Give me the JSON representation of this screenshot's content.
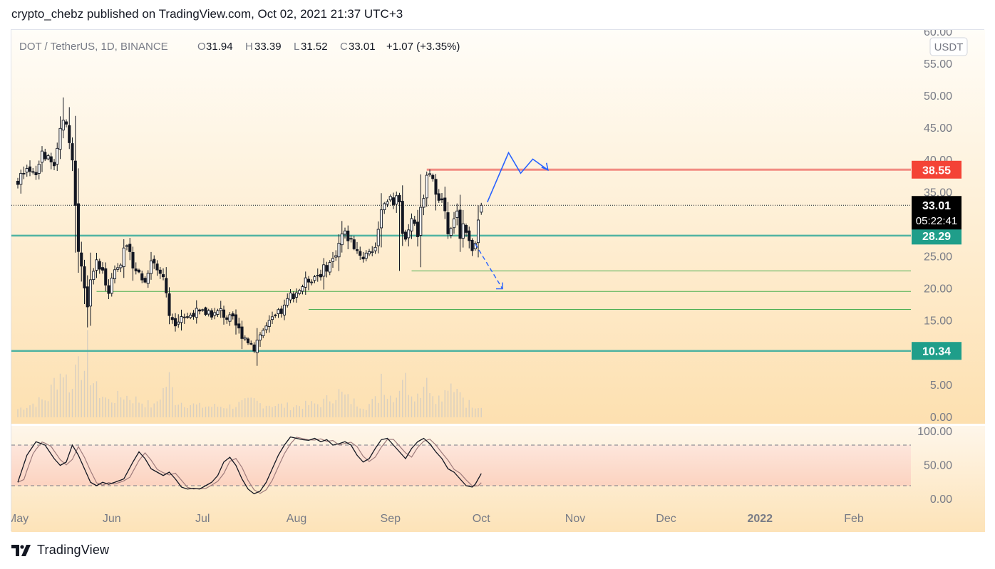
{
  "header": {
    "publish_line": "crypto_chebz published on TradingView.com, Oct 02, 2021 21:37 UTC+3"
  },
  "footer": {
    "brand": "TradingView"
  },
  "legend": {
    "symbol": "DOT / TetherUS, 1D, BINANCE",
    "o_label": "O",
    "o_value": "31.94",
    "h_label": "H",
    "h_value": "33.39",
    "l_label": "L",
    "l_value": "31.52",
    "c_label": "C",
    "c_value": "33.01",
    "change": "+1.07 (+3.35%)"
  },
  "currency_badge": "USDT",
  "colors": {
    "candle": "#131722",
    "resistance": "#f44336",
    "support": "#26a69a",
    "support_thin": "#4caf50",
    "projection": "#2962ff",
    "stoch_k": "#131722",
    "stoch_d": "#9e7b7b",
    "bg_top": "#fffdf8",
    "bg_bottom": "#fde0b0",
    "stoch_band": "#fcd3c6"
  },
  "chart_data": {
    "type": "candlestick",
    "ylim": [
      0,
      60
    ],
    "price_ticks": [
      "0.00",
      "5.00",
      "10.00",
      "15.00",
      "20.00",
      "25.00",
      "30.00",
      "35.00",
      "40.00",
      "45.00",
      "50.00",
      "55.00",
      "60.00"
    ],
    "x_labels": [
      {
        "label": "May",
        "day": 0
      },
      {
        "label": "Jun",
        "day": 31
      },
      {
        "label": "Jul",
        "day": 61
      },
      {
        "label": "Aug",
        "day": 92
      },
      {
        "label": "Sep",
        "day": 123
      },
      {
        "label": "Oct",
        "day": 153
      },
      {
        "label": "Nov",
        "day": 184
      },
      {
        "label": "Dec",
        "day": 214
      },
      {
        "label": "2022",
        "day": 245
      },
      {
        "label": "Feb",
        "day": 276
      }
    ],
    "close_anchors": [
      [
        0,
        37.0
      ],
      [
        3,
        38.0
      ],
      [
        6,
        37.5
      ],
      [
        8,
        41.5
      ],
      [
        10,
        40.0
      ],
      [
        12,
        39.0
      ],
      [
        14,
        45.0
      ],
      [
        15,
        47.0
      ],
      [
        16,
        45.0
      ],
      [
        17,
        43.5
      ],
      [
        18,
        40.0
      ],
      [
        20,
        26.0
      ],
      [
        21,
        24.0
      ],
      [
        23,
        17.0
      ],
      [
        24,
        22.0
      ],
      [
        26,
        24.0
      ],
      [
        28,
        22.5
      ],
      [
        30,
        20.0
      ],
      [
        32,
        23.0
      ],
      [
        34,
        24.5
      ],
      [
        35,
        27.0
      ],
      [
        37,
        25.0
      ],
      [
        39,
        23.0
      ],
      [
        42,
        21.0
      ],
      [
        44,
        25.0
      ],
      [
        46,
        23.0
      ],
      [
        48,
        22.0
      ],
      [
        50,
        16.0
      ],
      [
        52,
        15.0
      ],
      [
        54,
        16.0
      ],
      [
        56,
        15.5
      ],
      [
        58,
        16.5
      ],
      [
        60,
        16.0
      ],
      [
        63,
        16.5
      ],
      [
        65,
        16.0
      ],
      [
        67,
        16.5
      ],
      [
        69,
        15.5
      ],
      [
        71,
        15.0
      ],
      [
        73,
        13.5
      ],
      [
        75,
        12.5
      ],
      [
        77,
        11.5
      ],
      [
        78,
        11.0
      ],
      [
        80,
        13.0
      ],
      [
        82,
        14.0
      ],
      [
        84,
        15.0
      ],
      [
        86,
        16.0
      ],
      [
        88,
        17.0
      ],
      [
        90,
        19.0
      ],
      [
        92,
        19.5
      ],
      [
        94,
        20.5
      ],
      [
        96,
        21.5
      ],
      [
        98,
        22.0
      ],
      [
        100,
        22.5
      ],
      [
        102,
        23.5
      ],
      [
        104,
        24.5
      ],
      [
        106,
        27.0
      ],
      [
        107,
        28.5
      ],
      [
        108,
        28.5
      ],
      [
        110,
        27.5
      ],
      [
        112,
        26.0
      ],
      [
        114,
        25.0
      ],
      [
        116,
        26.0
      ],
      [
        118,
        26.5
      ],
      [
        119,
        28.5
      ],
      [
        120,
        33.0
      ],
      [
        122,
        34.0
      ],
      [
        124,
        33.5
      ],
      [
        125,
        35.0
      ],
      [
        126,
        33.0
      ],
      [
        127,
        29.0
      ],
      [
        128,
        27.0
      ],
      [
        129,
        28.5
      ],
      [
        130,
        31.0
      ],
      [
        131,
        30.0
      ],
      [
        132,
        28.5
      ],
      [
        133,
        32.0
      ],
      [
        134,
        34.5
      ],
      [
        135,
        37.0
      ],
      [
        136,
        37.5
      ],
      [
        137,
        36.5
      ],
      [
        138,
        35.5
      ],
      [
        139,
        34.5
      ],
      [
        140,
        33.5
      ],
      [
        141,
        32.0
      ],
      [
        142,
        28.0
      ],
      [
        143,
        29.0
      ],
      [
        144,
        30.5
      ],
      [
        145,
        32.5
      ],
      [
        146,
        28.5
      ],
      [
        147,
        30.0
      ],
      [
        148,
        29.0
      ],
      [
        149,
        27.0
      ],
      [
        150,
        26.5
      ],
      [
        151,
        27.5
      ],
      [
        152,
        31.5
      ],
      [
        153,
        33.01
      ]
    ],
    "last_bar": {
      "open": 31.94,
      "high": 33.39,
      "low": 31.52,
      "close": 33.01
    },
    "high_marker": {
      "day": 15,
      "value": 49.8
    },
    "levels": [
      {
        "name": "resistance",
        "value": 38.55,
        "from_day": 135,
        "label": "38.55",
        "style": "thick-red"
      },
      {
        "name": "support-upper",
        "value": 28.29,
        "from_day": -2,
        "label": "28.29",
        "style": "thick-teal"
      },
      {
        "name": "support-thin-1",
        "value": 22.8,
        "from_day": 130,
        "style": "thin-green"
      },
      {
        "name": "support-thin-2",
        "value": 19.6,
        "from_day": 26,
        "style": "thin-green"
      },
      {
        "name": "support-thin-3",
        "value": 16.8,
        "from_day": 96,
        "style": "thin-green"
      },
      {
        "name": "support-lower",
        "value": 10.34,
        "from_day": -2,
        "label": "10.34",
        "style": "thick-teal"
      }
    ],
    "current_price": {
      "label": "33.01",
      "countdown": "05:22:41",
      "value": 33.01
    },
    "projection_up": [
      [
        155,
        33.5
      ],
      [
        162,
        41.2
      ],
      [
        166,
        38.0
      ],
      [
        170,
        40.2
      ],
      [
        175,
        38.5
      ]
    ],
    "projection_down": [
      [
        151,
        27.0
      ],
      [
        160,
        20.0
      ]
    ],
    "stochastic": {
      "ylim": [
        0,
        100
      ],
      "ticks": [
        "0.00",
        "50.00",
        "100.00"
      ],
      "upper_band": 80,
      "lower_band": 20,
      "k_anchors": [
        [
          0,
          25
        ],
        [
          3,
          65
        ],
        [
          6,
          85
        ],
        [
          9,
          80
        ],
        [
          12,
          60
        ],
        [
          14,
          50
        ],
        [
          16,
          55
        ],
        [
          18,
          80
        ],
        [
          20,
          65
        ],
        [
          22,
          45
        ],
        [
          24,
          25
        ],
        [
          26,
          20
        ],
        [
          28,
          25
        ],
        [
          30,
          22
        ],
        [
          32,
          25
        ],
        [
          35,
          30
        ],
        [
          38,
          55
        ],
        [
          40,
          70
        ],
        [
          42,
          60
        ],
        [
          44,
          45
        ],
        [
          46,
          40
        ],
        [
          48,
          35
        ],
        [
          50,
          40
        ],
        [
          52,
          30
        ],
        [
          54,
          18
        ],
        [
          56,
          15
        ],
        [
          58,
          16
        ],
        [
          60,
          15
        ],
        [
          62,
          20
        ],
        [
          64,
          25
        ],
        [
          66,
          35
        ],
        [
          68,
          55
        ],
        [
          70,
          62
        ],
        [
          72,
          50
        ],
        [
          74,
          30
        ],
        [
          76,
          15
        ],
        [
          78,
          8
        ],
        [
          80,
          12
        ],
        [
          82,
          25
        ],
        [
          84,
          45
        ],
        [
          86,
          65
        ],
        [
          88,
          80
        ],
        [
          90,
          92
        ],
        [
          92,
          90
        ],
        [
          94,
          88
        ],
        [
          96,
          87
        ],
        [
          98,
          90
        ],
        [
          100,
          85
        ],
        [
          102,
          88
        ],
        [
          104,
          80
        ],
        [
          106,
          82
        ],
        [
          108,
          85
        ],
        [
          110,
          80
        ],
        [
          112,
          65
        ],
        [
          114,
          55
        ],
        [
          116,
          60
        ],
        [
          118,
          75
        ],
        [
          120,
          88
        ],
        [
          122,
          90
        ],
        [
          124,
          80
        ],
        [
          126,
          70
        ],
        [
          128,
          60
        ],
        [
          130,
          75
        ],
        [
          132,
          85
        ],
        [
          134,
          90
        ],
        [
          136,
          82
        ],
        [
          138,
          70
        ],
        [
          140,
          60
        ],
        [
          142,
          45
        ],
        [
          144,
          40
        ],
        [
          146,
          30
        ],
        [
          148,
          20
        ],
        [
          150,
          18
        ],
        [
          151,
          22
        ],
        [
          152,
          30
        ],
        [
          153,
          38
        ]
      ]
    },
    "volume_anchors": [
      [
        0,
        1.5
      ],
      [
        5,
        2.5
      ],
      [
        10,
        3.5
      ],
      [
        12,
        6.5
      ],
      [
        14,
        8.0
      ],
      [
        15,
        9.0
      ],
      [
        16,
        7.0
      ],
      [
        18,
        5.0
      ],
      [
        20,
        14.5
      ],
      [
        21,
        10.0
      ],
      [
        22,
        6.5
      ],
      [
        23,
        12.0
      ],
      [
        24,
        8.0
      ],
      [
        26,
        5.0
      ],
      [
        30,
        3.0
      ],
      [
        35,
        4.0
      ],
      [
        40,
        3.0
      ],
      [
        45,
        2.0
      ],
      [
        50,
        7.0
      ],
      [
        52,
        3.0
      ],
      [
        60,
        2.0
      ],
      [
        70,
        2.0
      ],
      [
        78,
        3.0
      ],
      [
        80,
        2.5
      ],
      [
        90,
        2.0
      ],
      [
        100,
        2.5
      ],
      [
        106,
        4.5
      ],
      [
        110,
        3.0
      ],
      [
        115,
        2.0
      ],
      [
        119,
        3.5
      ],
      [
        120,
        8.0
      ],
      [
        122,
        4.0
      ],
      [
        125,
        4.0
      ],
      [
        127,
        8.0
      ],
      [
        129,
        5.5
      ],
      [
        132,
        4.0
      ],
      [
        134,
        6.0
      ],
      [
        135,
        10.0
      ],
      [
        136,
        4.5
      ],
      [
        140,
        3.0
      ],
      [
        142,
        5.5
      ],
      [
        144,
        4.0
      ],
      [
        146,
        5.5
      ],
      [
        148,
        2.5
      ],
      [
        150,
        2.5
      ],
      [
        153,
        2.0
      ]
    ]
  }
}
